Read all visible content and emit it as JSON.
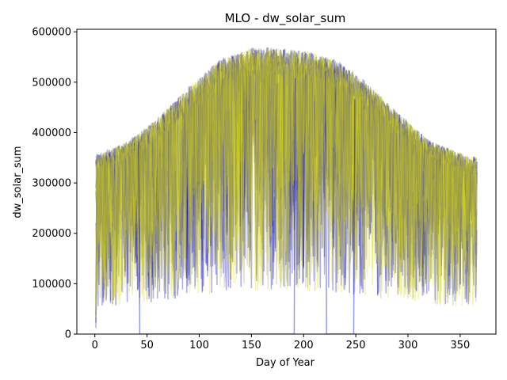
{
  "chart_data": {
    "type": "line",
    "title": "MLO - dw_solar_sum",
    "xlabel": "Day of Year",
    "ylabel": "dw_solar_sum",
    "xlim": [
      -17.25,
      384.25
    ],
    "ylim": [
      0,
      605000
    ],
    "x_ticks": [
      0,
      50,
      100,
      150,
      200,
      250,
      300,
      350
    ],
    "y_ticks": [
      0,
      100000,
      200000,
      300000,
      400000,
      500000,
      600000
    ],
    "x_tick_labels": [
      "0",
      "50",
      "100",
      "150",
      "200",
      "250",
      "300",
      "350"
    ],
    "y_tick_labels": [
      "0",
      "100000",
      "200000",
      "300000",
      "400000",
      "500000",
      "600000"
    ],
    "grid": false,
    "legend": false,
    "day_range": [
      1,
      366
    ],
    "envelope": {
      "days": [
        1,
        30,
        60,
        90,
        120,
        150,
        172,
        200,
        230,
        260,
        290,
        320,
        350,
        366
      ],
      "clear_sky_max": [
        355000,
        380000,
        430000,
        490000,
        545000,
        568000,
        568000,
        563000,
        545000,
        500000,
        440000,
        385000,
        360000,
        350000
      ]
    },
    "series": [
      {
        "color": "#0000cd",
        "opacity": 0.32,
        "count": 10
      },
      {
        "color": "#dcdc14",
        "opacity": 0.32,
        "count": 10
      },
      {
        "color": "#8c8c5a",
        "opacity": 0.28,
        "count": 4
      }
    ],
    "zero_segments": [
      {
        "from": 43,
        "to": 191,
        "color": "#0000cd"
      },
      {
        "from": 222,
        "to": 248,
        "color": "#0000cd"
      }
    ]
  }
}
